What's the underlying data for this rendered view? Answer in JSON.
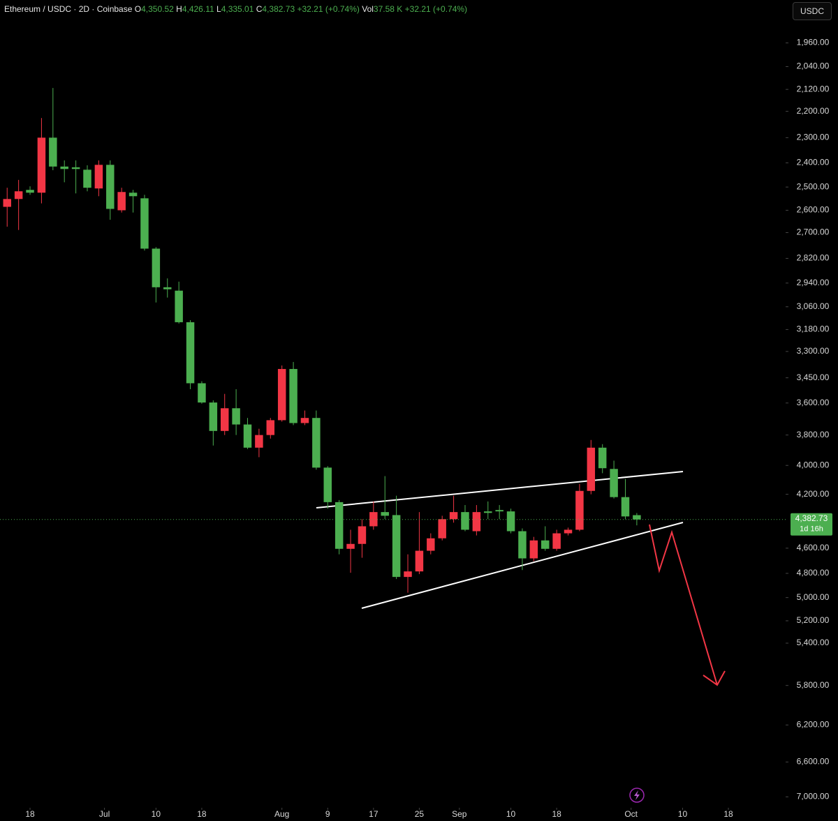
{
  "header": {
    "symbol": "Ethereum / USDC · 2D · Coinbase",
    "fields": [
      {
        "key": "O",
        "value": "4,350.52"
      },
      {
        "key": "H",
        "value": "4,426.11"
      },
      {
        "key": "L",
        "value": "4,335.01"
      },
      {
        "key": "C",
        "value": "4,382.73"
      }
    ],
    "change": "+32.21 (+0.74%)",
    "volume": {
      "key": "Vol",
      "value": "37.58 K",
      "change": "+32.21 (+0.74%)"
    }
  },
  "currency": "USDC",
  "chart_data": {
    "type": "candlestick",
    "log_scale": true,
    "y_inverted": true,
    "up_color": "#4caf50",
    "down_color": "#f23645",
    "x": [
      14,
      16,
      18,
      20,
      22,
      24,
      26,
      28,
      30,
      32,
      34,
      36,
      38,
      40,
      42,
      44,
      46,
      48,
      50,
      52,
      54,
      56,
      58,
      60,
      62,
      64,
      66,
      68,
      70,
      72,
      74,
      76,
      78,
      80,
      82,
      84,
      86,
      88,
      90,
      92,
      94,
      96,
      98,
      100,
      102,
      104,
      106,
      108,
      110,
      112,
      114,
      116,
      118,
      120,
      122,
      124
    ],
    "open": [
      2585,
      2551,
      2512,
      2524,
      2300,
      2415,
      2418,
      2428,
      2506,
      2408,
      2600,
      2524,
      2548,
      2774,
      2961,
      2978,
      3141,
      3482,
      3597,
      3774,
      3632,
      3733,
      3882,
      3800,
      3706,
      3399,
      3724,
      3692,
      4015,
      4256,
      4605,
      4567,
      4433,
      4328,
      4350,
      4829,
      4784,
      4620,
      4524,
      4380,
      4328,
      4470,
      4323,
      4313,
      4323,
      4470,
      4680,
      4540,
      4605,
      4486,
      4459,
      4176,
      3882,
      4024,
      4220,
      4350.52
    ],
    "high": [
      2673,
      2688,
      2533,
      2570,
      2430,
      2480,
      2527,
      2518,
      2539,
      2642,
      2610,
      2610,
      2783,
      3038,
      3013,
      3148,
      3517,
      3604,
      3868,
      3800,
      3800,
      3891,
      3945,
      3823,
      3715,
      3737,
      3737,
      4029,
      4303,
      4648,
      4795,
      4675,
      4459,
      4380,
      4846,
      4959,
      4806,
      4648,
      4540,
      4406,
      4470,
      4502,
      4380,
      4380,
      4486,
      4773,
      4702,
      4620,
      4620,
      4502,
      4470,
      4200,
      4053,
      4230,
      4380,
      4426.11
    ],
    "low": [
      2503,
      2470,
      2497,
      2225,
      2115,
      2390,
      2390,
      2410,
      2390,
      2390,
      2503,
      2512,
      2533,
      2767,
      2917,
      2933,
      3130,
      3470,
      3584,
      3545,
      3517,
      3692,
      3760,
      3692,
      3379,
      3359,
      3646,
      3646,
      4005,
      4241,
      4459,
      4380,
      4251,
      4073,
      4210,
      4648,
      4328,
      4486,
      4355,
      4210,
      4277,
      4277,
      4251,
      4277,
      4303,
      4449,
      4513,
      4433,
      4459,
      4443,
      4127,
      3832,
      3859,
      3968,
      4093,
      4335.01
    ],
    "close": [
      2551,
      2518,
      2524,
      2300,
      2415,
      2425,
      2425,
      2503,
      2408,
      2594,
      2521,
      2539,
      2774,
      2961,
      2971,
      3141,
      3482,
      3597,
      3774,
      3632,
      3733,
      3882,
      3800,
      3706,
      3399,
      3724,
      3692,
      4015,
      4256,
      4605,
      4567,
      4433,
      4328,
      4355,
      4829,
      4784,
      4620,
      4524,
      4380,
      4328,
      4459,
      4328,
      4334,
      4323,
      4470,
      4680,
      4540,
      4605,
      4486,
      4459,
      4176,
      3882,
      4019,
      4220,
      4360,
      4382.73
    ],
    "ylim": [
      1823,
      7105
    ],
    "yticks": [
      {
        "value": 1960,
        "label": "1,960.00"
      },
      {
        "value": 2040,
        "label": "2,040.00"
      },
      {
        "value": 2120,
        "label": "2,120.00"
      },
      {
        "value": 2200,
        "label": "2,200.00"
      },
      {
        "value": 2300,
        "label": "2,300.00"
      },
      {
        "value": 2400,
        "label": "2,400.00"
      },
      {
        "value": 2500,
        "label": "2,500.00"
      },
      {
        "value": 2600,
        "label": "2,600.00"
      },
      {
        "value": 2700,
        "label": "2,700.00"
      },
      {
        "value": 2820,
        "label": "2,820.00"
      },
      {
        "value": 2940,
        "label": "2,940.00"
      },
      {
        "value": 3060,
        "label": "3,060.00"
      },
      {
        "value": 3180,
        "label": "3,180.00"
      },
      {
        "value": 3300,
        "label": "3,300.00"
      },
      {
        "value": 3450,
        "label": "3,450.00"
      },
      {
        "value": 3600,
        "label": "3,600.00"
      },
      {
        "value": 3800,
        "label": "3,800.00"
      },
      {
        "value": 4000,
        "label": "4,000.00"
      },
      {
        "value": 4200,
        "label": "4,200.00"
      },
      {
        "value": 4600,
        "label": "4,600.00"
      },
      {
        "value": 4800,
        "label": "4,800.00"
      },
      {
        "value": 5000,
        "label": "5,000.00"
      },
      {
        "value": 5200,
        "label": "5,200.00"
      },
      {
        "value": 5400,
        "label": "5,400.00"
      },
      {
        "value": 5800,
        "label": "5,800.00"
      },
      {
        "value": 6200,
        "label": "6,200.00"
      },
      {
        "value": 6600,
        "label": "6,600.00"
      },
      {
        "value": 7000,
        "label": "7,000.00"
      }
    ],
    "xlim": [
      12.75,
      150
    ],
    "xticks": [
      18,
      {
        "value": 31,
        "label": "Jul"
      },
      {
        "value": 40,
        "label": "10"
      },
      {
        "value": 48,
        "label": "18"
      },
      {
        "value": 62,
        "label": "Aug"
      },
      {
        "value": 70,
        "label": "9"
      },
      {
        "value": 78,
        "label": "17"
      },
      {
        "value": 86,
        "label": "25"
      },
      {
        "value": 93,
        "label": "Sep"
      },
      {
        "value": 102,
        "label": "10"
      },
      {
        "value": 110,
        "label": "18"
      },
      {
        "value": 123,
        "label": "Oct"
      },
      {
        "value": 132,
        "label": "10"
      },
      {
        "value": 140,
        "label": "18"
      }
    ],
    "last_price_label": "4,382.73",
    "countdown": "1d 16h"
  }
}
